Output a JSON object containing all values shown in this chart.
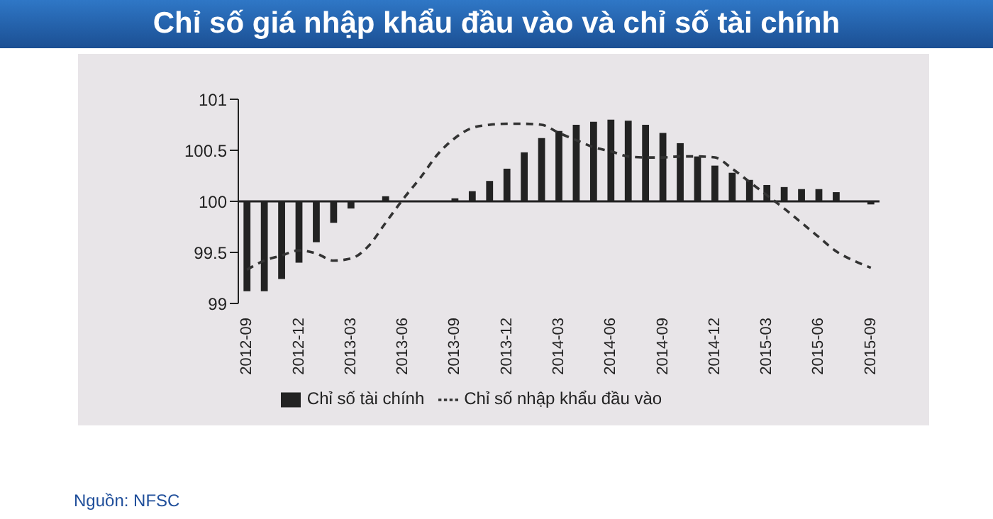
{
  "chart_data": {
    "type": "bar",
    "title": "Chỉ số giá nhập khẩu đầu vào và chỉ số tài chính",
    "categories": [
      "2012-09",
      null,
      null,
      "2012-12",
      null,
      null,
      "2013-03",
      null,
      null,
      "2013-06",
      null,
      null,
      "2013-09",
      null,
      null,
      "2013-12",
      null,
      null,
      "2014-03",
      null,
      null,
      "2014-06",
      null,
      null,
      "2014-09",
      null,
      null,
      "2014-12",
      null,
      null,
      "2015-03",
      null,
      null,
      "2015-06",
      null,
      null,
      "2015-09"
    ],
    "series": [
      {
        "name": "Chỉ số tài chính",
        "color": "#222222",
        "base": [
          100,
          100,
          100,
          100,
          100,
          100,
          100,
          null,
          100,
          null,
          null,
          null,
          100,
          100,
          100,
          100,
          100,
          100,
          100,
          100,
          100,
          100,
          100,
          100,
          100,
          100,
          100,
          100,
          100,
          100,
          100,
          100,
          100,
          100,
          100,
          null,
          100
        ],
        "values": [
          -0.88,
          -0.88,
          -0.76,
          -0.6,
          -0.4,
          -0.21,
          -0.07,
          0,
          0.05,
          0,
          0,
          0,
          0.03,
          0.1,
          0.2,
          0.32,
          0.48,
          0.62,
          0.69,
          0.75,
          0.78,
          0.8,
          0.79,
          0.75,
          0.67,
          0.57,
          0.44,
          0.35,
          0.28,
          0.21,
          0.16,
          0.14,
          0.12,
          0.12,
          0.09,
          0,
          -0.03
        ]
      },
      {
        "name": "Chỉ số nhập khẩu đầu vào",
        "type": "line",
        "color": "#333333",
        "line_style": "dashed",
        "values": [
          99.33,
          99.42,
          99.47,
          99.52,
          99.49,
          99.42,
          99.44,
          99.56,
          99.79,
          100.02,
          100.23,
          100.46,
          100.62,
          100.72,
          100.75,
          100.76,
          100.76,
          100.75,
          100.67,
          100.6,
          100.53,
          100.49,
          100.44,
          100.43,
          100.43,
          100.44,
          100.44,
          100.43,
          100.32,
          100.19,
          100.06,
          99.93,
          99.79,
          99.65,
          99.51,
          99.42,
          99.35
        ]
      }
    ],
    "ylim": [
      99,
      101
    ],
    "yticks": [
      99,
      99.5,
      100,
      100.5,
      101
    ],
    "ref_lines": [
      {
        "axis": "y",
        "value": 100,
        "color": "#222222"
      }
    ],
    "grid": false,
    "legend": "bottom",
    "marker": "none",
    "annotations": [
      "Nguồn: NFSC"
    ]
  }
}
